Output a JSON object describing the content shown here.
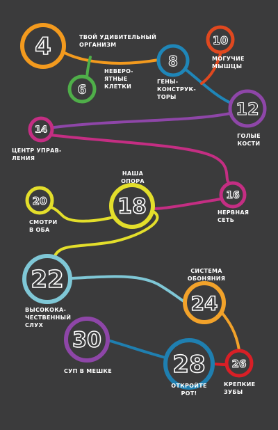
{
  "background": "#3b3b3c",
  "line_color_default": "#ffffff",
  "chapters": [
    {
      "id": "n4",
      "number": "4",
      "label": "ТВОЙ УДИВИТЕЛЬНЫЙ\nОРГАНИЗМ",
      "color": "#f39a1e"
    },
    {
      "id": "n6",
      "number": "6",
      "label": "НЕВЕРО-\nЯТНЫЕ\nКЛЕТКИ",
      "color": "#4fae49"
    },
    {
      "id": "n8",
      "number": "8",
      "label": "ГЕНЫ-\nКОНСТРУК-\nТОРЫ",
      "color": "#1f86b8"
    },
    {
      "id": "n10",
      "number": "10",
      "label": "МОГУЧИЕ\nМЫШЦЫ",
      "color": "#e0481f"
    },
    {
      "id": "n12",
      "number": "12",
      "label": "ГОЛЫЕ\nКОСТИ",
      "color": "#8e46a8"
    },
    {
      "id": "n14",
      "number": "14",
      "label": "ЦЕНТР УПРАВ-\nЛЕНИЯ",
      "color": "#c42e83"
    },
    {
      "id": "n16",
      "number": "16",
      "label": "НЕРВНАЯ\nСЕТЬ",
      "color": "#c42e83"
    },
    {
      "id": "n18",
      "number": "18",
      "label": "НАША\nОПОРА",
      "color": "#e3de2b"
    },
    {
      "id": "n20",
      "number": "20",
      "label": "СМОТРИ\nВ ОБА",
      "color": "#e3de2b"
    },
    {
      "id": "n22",
      "number": "22",
      "label": "ВЫСОКОКА-\nЧЕСТВЕННЫЙ\nСЛУХ",
      "color": "#7fc7d6"
    },
    {
      "id": "n24",
      "number": "24",
      "label": "СИСТЕМА\nОБОНЯНИЯ",
      "color": "#f2a22a"
    },
    {
      "id": "n26",
      "number": "26",
      "label": "КРЕПКИЕ\nЗУБЫ",
      "color": "#d81f26"
    },
    {
      "id": "n28",
      "number": "28",
      "label": "ОТКРОЙТЕ\nРОТ!",
      "color": "#1f7fb0"
    },
    {
      "id": "n30",
      "number": "30",
      "label": "СУП В МЕШКЕ",
      "color": "#8e46a8"
    }
  ]
}
